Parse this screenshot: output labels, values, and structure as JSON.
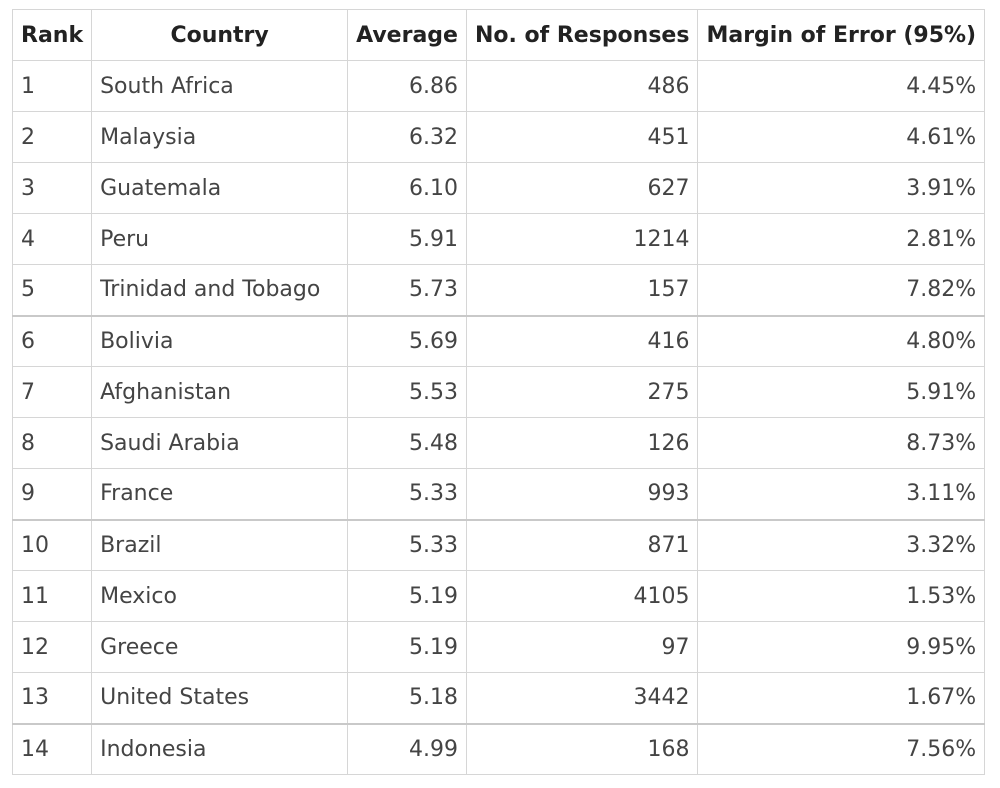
{
  "table": {
    "columns": [
      "Rank",
      "Country",
      "Average",
      "No. of Responses",
      "Margin of Error (95%)"
    ],
    "rows": [
      {
        "rank": "1",
        "country": "South Africa",
        "average": "6.86",
        "responses": "486",
        "moe": "4.45%"
      },
      {
        "rank": "2",
        "country": "Malaysia",
        "average": "6.32",
        "responses": "451",
        "moe": "4.61%"
      },
      {
        "rank": "3",
        "country": "Guatemala",
        "average": "6.10",
        "responses": "627",
        "moe": "3.91%"
      },
      {
        "rank": "4",
        "country": "Peru",
        "average": "5.91",
        "responses": "1214",
        "moe": "2.81%"
      },
      {
        "rank": "5",
        "country": "Trinidad and Tobago",
        "average": "5.73",
        "responses": "157",
        "moe": "7.82%"
      },
      {
        "rank": "6",
        "country": "Bolivia",
        "average": "5.69",
        "responses": "416",
        "moe": "4.80%"
      },
      {
        "rank": "7",
        "country": "Afghanistan",
        "average": "5.53",
        "responses": "275",
        "moe": "5.91%"
      },
      {
        "rank": "8",
        "country": "Saudi Arabia",
        "average": "5.48",
        "responses": "126",
        "moe": "8.73%"
      },
      {
        "rank": "9",
        "country": "France",
        "average": "5.33",
        "responses": "993",
        "moe": "3.11%"
      },
      {
        "rank": "10",
        "country": "Brazil",
        "average": "5.33",
        "responses": "871",
        "moe": "3.32%"
      },
      {
        "rank": "11",
        "country": "Mexico",
        "average": "5.19",
        "responses": "4105",
        "moe": "1.53%"
      },
      {
        "rank": "12",
        "country": "Greece",
        "average": "5.19",
        "responses": "97",
        "moe": "9.95%"
      },
      {
        "rank": "13",
        "country": "United States",
        "average": "5.18",
        "responses": "3442",
        "moe": "1.67%"
      },
      {
        "rank": "14",
        "country": "Indonesia",
        "average": "4.99",
        "responses": "168",
        "moe": "7.56%"
      }
    ]
  },
  "colors": {
    "border": "#d6d6d6",
    "text": "#444444",
    "header_text": "#222222"
  }
}
